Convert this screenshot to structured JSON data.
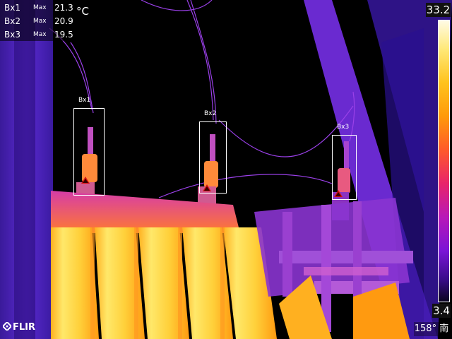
{
  "measurements": [
    {
      "name": "Bx1",
      "kind": "Max",
      "value": "21.3",
      "unit": "°C"
    },
    {
      "name": "Bx2",
      "kind": "Max",
      "value": "20.9"
    },
    {
      "name": "Bx3",
      "kind": "Max",
      "value": "19.5"
    }
  ],
  "boxes": [
    "Bx1",
    "Bx2",
    "Bx3"
  ],
  "scale": {
    "max": "33.2",
    "min": "3.4"
  },
  "brand": "FLIR",
  "compass": "158° 南",
  "colors": {
    "hot": "#ffe44a",
    "warm": "#ff8a1a",
    "mid": "#d63c8a",
    "cool": "#7a2ad6",
    "background": "#000000",
    "marker": "#d81010"
  }
}
